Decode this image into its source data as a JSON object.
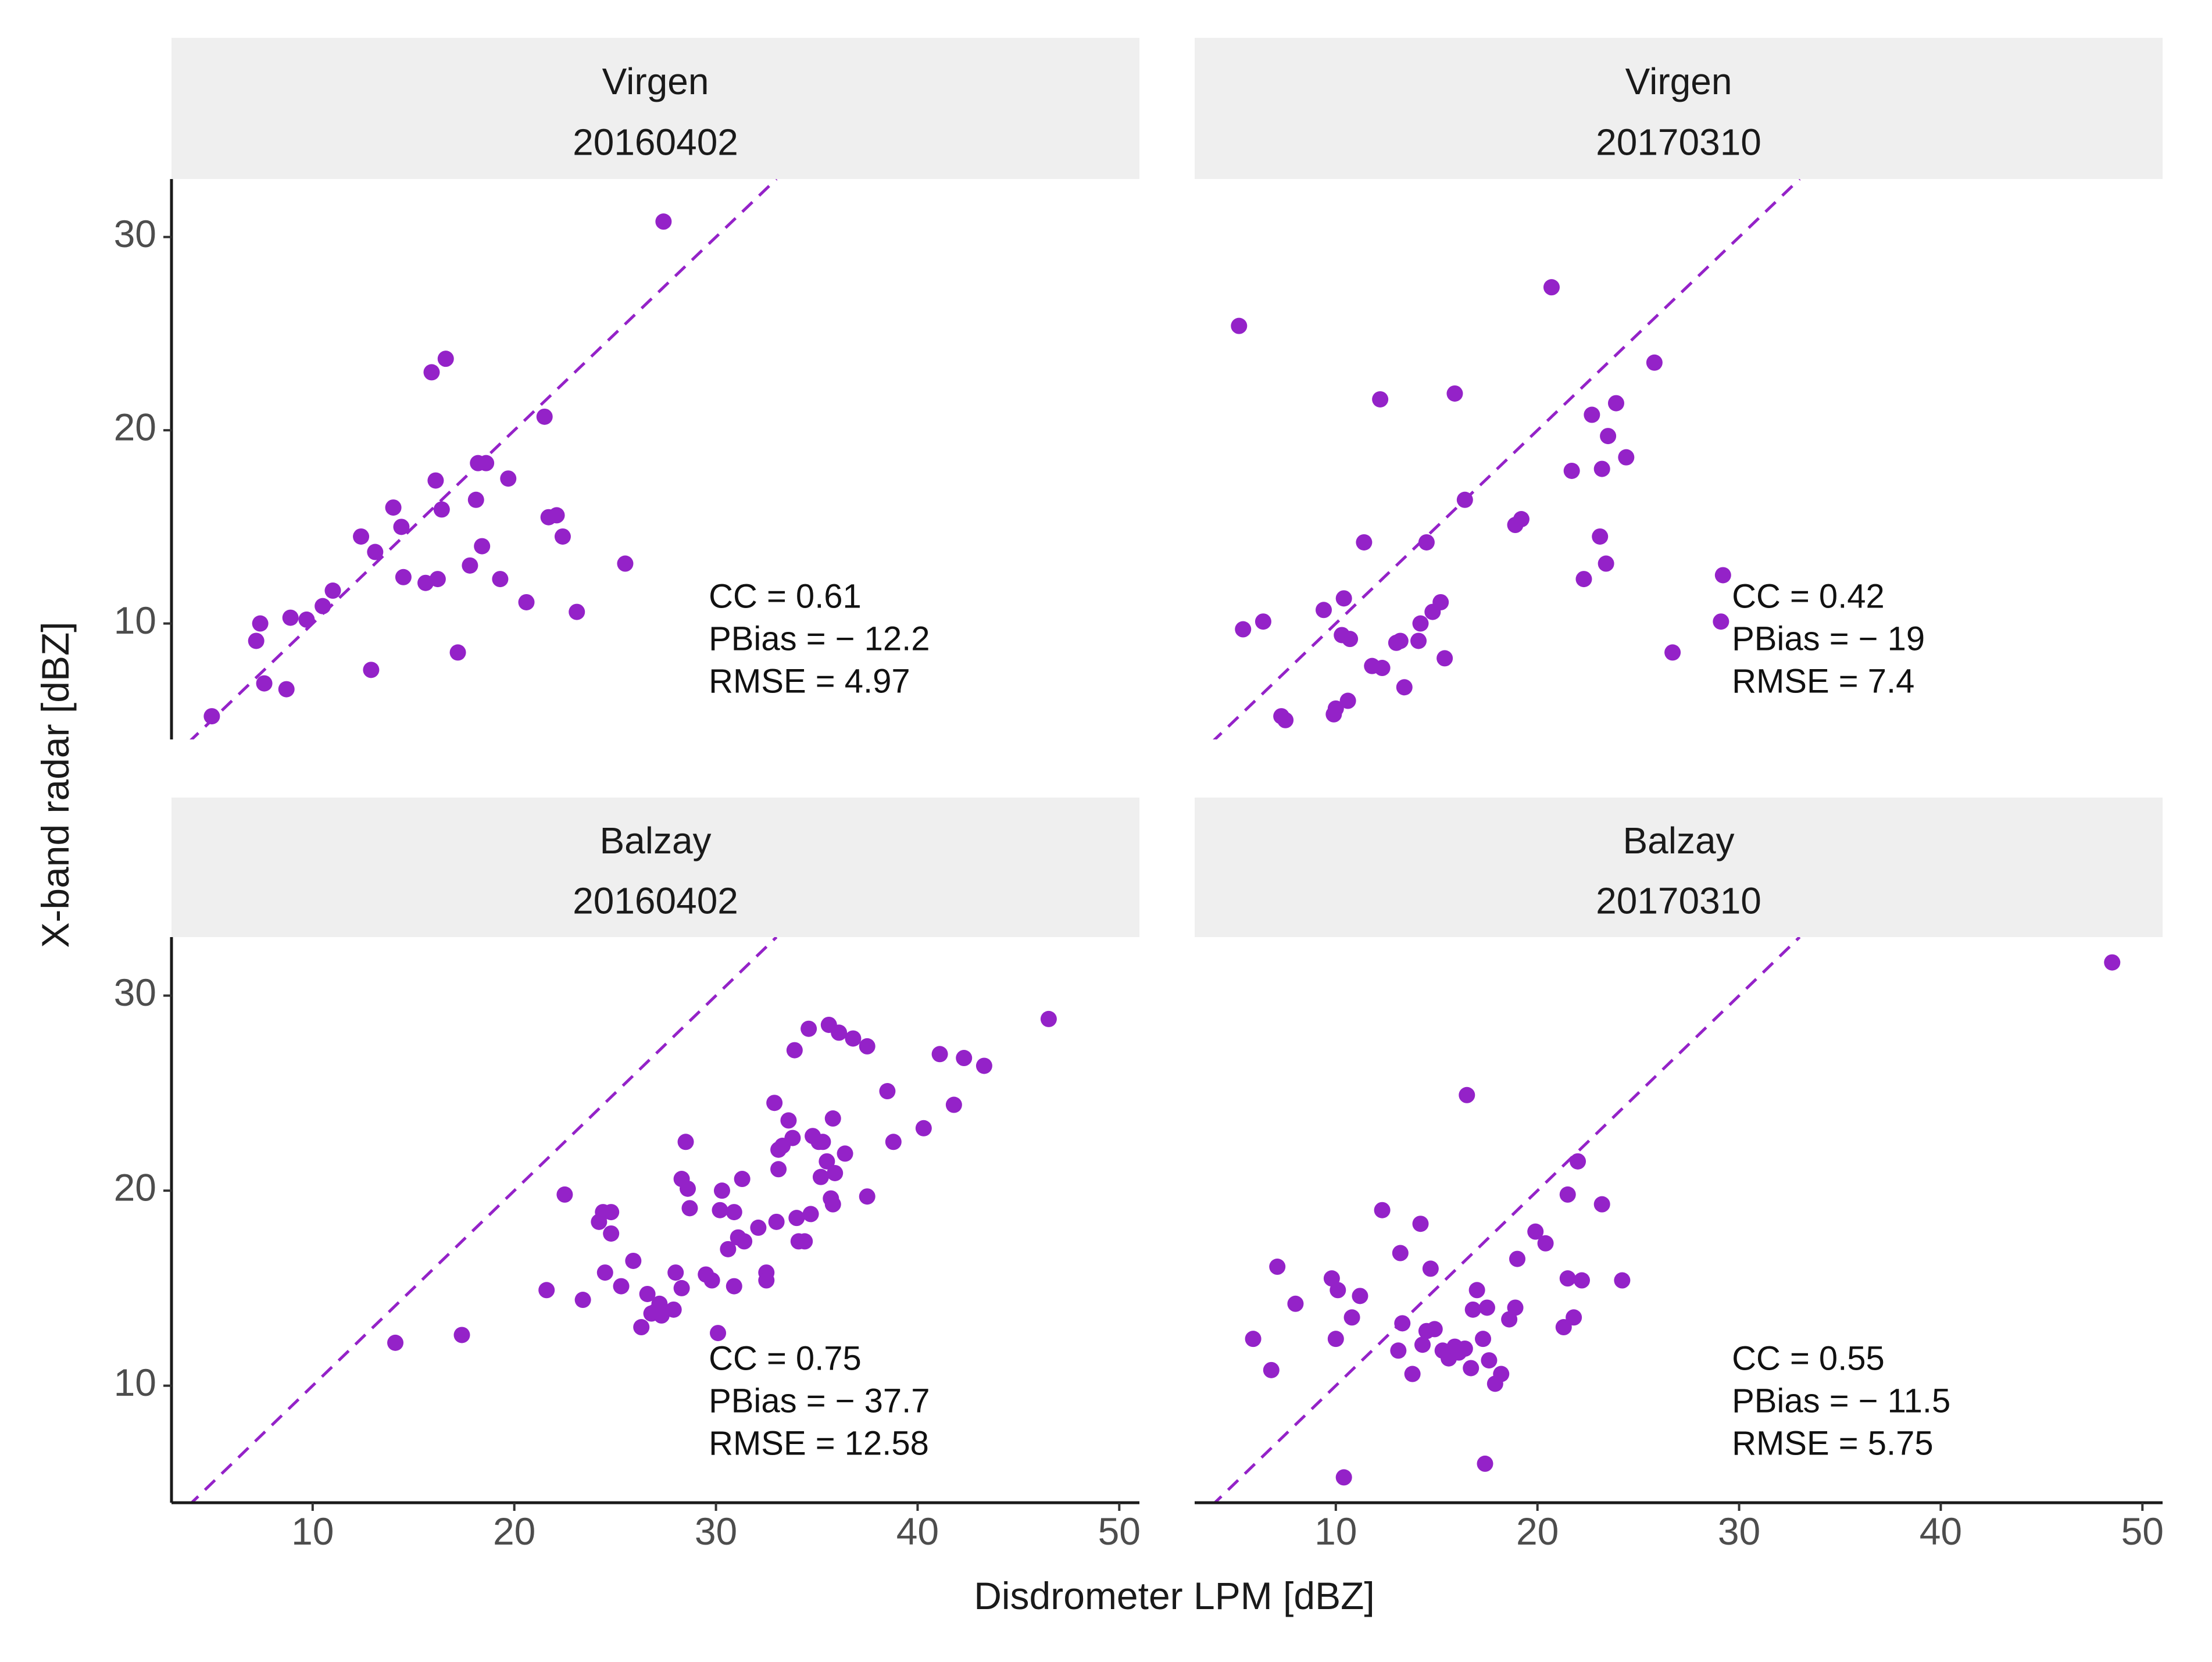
{
  "chart_data": {
    "type": "scatter",
    "xlabel": "Disdrometer LPM [dBZ]",
    "ylabel": "X-band radar [dBZ]",
    "xlim": [
      3,
      51
    ],
    "ylim": [
      4,
      33
    ],
    "xticks": [
      10,
      20,
      30,
      40,
      50
    ],
    "yticks": [
      10,
      20,
      30
    ],
    "reference_line": "1:1 dashed",
    "colors": {
      "point": "#9422c8",
      "line": "#9422c8",
      "strip": "#efefef"
    },
    "panels": [
      {
        "site": "Virgen",
        "date": "20160402",
        "stats": {
          "cc": "CC = 0.61",
          "pbias": "PBias = − 12.2",
          "rmse": "RMSE = 4.97"
        },
        "points": [
          [
            5.0,
            5.2
          ],
          [
            7.2,
            9.1
          ],
          [
            7.4,
            10.0
          ],
          [
            7.6,
            6.9
          ],
          [
            8.7,
            6.6
          ],
          [
            8.9,
            10.3
          ],
          [
            9.7,
            10.2
          ],
          [
            10.5,
            10.9
          ],
          [
            11.0,
            11.7
          ],
          [
            12.4,
            14.5
          ],
          [
            12.9,
            7.6
          ],
          [
            13.1,
            13.7
          ],
          [
            14.0,
            16.0
          ],
          [
            14.4,
            15.0
          ],
          [
            14.5,
            12.4
          ],
          [
            15.6,
            12.1
          ],
          [
            15.9,
            23.0
          ],
          [
            16.1,
            17.4
          ],
          [
            16.2,
            12.3
          ],
          [
            16.4,
            15.9
          ],
          [
            16.6,
            23.7
          ],
          [
            17.2,
            8.5
          ],
          [
            17.8,
            13.0
          ],
          [
            18.1,
            16.4
          ],
          [
            18.2,
            18.3
          ],
          [
            18.4,
            14.0
          ],
          [
            18.6,
            18.3
          ],
          [
            19.3,
            12.3
          ],
          [
            19.7,
            17.5
          ],
          [
            20.6,
            11.1
          ],
          [
            21.5,
            20.7
          ],
          [
            21.7,
            15.5
          ],
          [
            22.1,
            15.6
          ],
          [
            22.4,
            14.5
          ],
          [
            23.1,
            10.6
          ],
          [
            25.5,
            13.1
          ],
          [
            27.4,
            30.8
          ]
        ]
      },
      {
        "site": "Virgen",
        "date": "20170310",
        "stats": {
          "cc": "CC = 0.42",
          "pbias": "PBias = − 19",
          "rmse": "RMSE = 7.4"
        },
        "points": [
          [
            5.2,
            25.4
          ],
          [
            5.4,
            9.7
          ],
          [
            6.4,
            10.1
          ],
          [
            7.3,
            5.2
          ],
          [
            7.5,
            5.0
          ],
          [
            9.4,
            10.7
          ],
          [
            9.9,
            5.3
          ],
          [
            10.0,
            5.6
          ],
          [
            10.3,
            9.4
          ],
          [
            10.4,
            11.3
          ],
          [
            10.6,
            6.0
          ],
          [
            10.7,
            9.2
          ],
          [
            11.4,
            14.2
          ],
          [
            11.8,
            7.8
          ],
          [
            12.2,
            21.6
          ],
          [
            12.3,
            7.7
          ],
          [
            13.0,
            9.0
          ],
          [
            13.2,
            9.1
          ],
          [
            13.4,
            6.7
          ],
          [
            14.1,
            9.1
          ],
          [
            14.2,
            10.0
          ],
          [
            14.5,
            14.2
          ],
          [
            14.8,
            10.6
          ],
          [
            15.2,
            11.1
          ],
          [
            15.4,
            8.2
          ],
          [
            15.9,
            21.9
          ],
          [
            16.4,
            16.4
          ],
          [
            18.9,
            15.1
          ],
          [
            19.2,
            15.4
          ],
          [
            20.7,
            27.4
          ],
          [
            21.7,
            17.9
          ],
          [
            22.3,
            12.3
          ],
          [
            22.7,
            20.8
          ],
          [
            23.1,
            14.5
          ],
          [
            23.2,
            18.0
          ],
          [
            23.4,
            13.1
          ],
          [
            23.5,
            19.7
          ],
          [
            23.9,
            21.4
          ],
          [
            24.4,
            18.6
          ],
          [
            25.8,
            23.5
          ],
          [
            26.7,
            8.5
          ],
          [
            29.1,
            10.1
          ],
          [
            29.2,
            12.5
          ]
        ]
      },
      {
        "site": "Balzay",
        "date": "20160402",
        "stats": {
          "cc": "CC = 0.75",
          "pbias": "PBias = − 37.7",
          "rmse": "RMSE = 12.58"
        },
        "points": [
          [
            14.1,
            12.2
          ],
          [
            17.4,
            12.6
          ],
          [
            21.6,
            14.9
          ],
          [
            22.5,
            19.8
          ],
          [
            23.4,
            14.4
          ],
          [
            24.2,
            18.4
          ],
          [
            24.4,
            18.9
          ],
          [
            24.5,
            15.8
          ],
          [
            24.8,
            18.9
          ],
          [
            24.8,
            17.8
          ],
          [
            25.3,
            15.1
          ],
          [
            25.9,
            16.4
          ],
          [
            26.3,
            13.0
          ],
          [
            26.6,
            14.7
          ],
          [
            26.8,
            13.7
          ],
          [
            27.0,
            13.8
          ],
          [
            27.2,
            14.2
          ],
          [
            27.3,
            13.6
          ],
          [
            27.9,
            13.9
          ],
          [
            28.0,
            15.8
          ],
          [
            28.3,
            15.0
          ],
          [
            28.3,
            20.6
          ],
          [
            28.5,
            22.5
          ],
          [
            28.6,
            20.1
          ],
          [
            28.7,
            19.1
          ],
          [
            29.5,
            15.7
          ],
          [
            29.8,
            15.4
          ],
          [
            30.1,
            12.7
          ],
          [
            30.2,
            19.0
          ],
          [
            30.3,
            20.0
          ],
          [
            30.6,
            17.0
          ],
          [
            30.9,
            18.9
          ],
          [
            30.9,
            15.1
          ],
          [
            31.1,
            17.6
          ],
          [
            31.3,
            20.6
          ],
          [
            31.4,
            17.4
          ],
          [
            32.1,
            18.1
          ],
          [
            32.5,
            15.8
          ],
          [
            32.5,
            15.4
          ],
          [
            32.9,
            24.5
          ],
          [
            33.0,
            18.4
          ],
          [
            33.1,
            22.1
          ],
          [
            33.1,
            21.1
          ],
          [
            33.3,
            22.3
          ],
          [
            33.6,
            23.6
          ],
          [
            33.8,
            22.7
          ],
          [
            33.9,
            27.2
          ],
          [
            34.0,
            18.6
          ],
          [
            34.1,
            17.4
          ],
          [
            34.4,
            17.4
          ],
          [
            34.6,
            28.3
          ],
          [
            34.7,
            18.8
          ],
          [
            34.8,
            22.8
          ],
          [
            35.1,
            22.5
          ],
          [
            35.2,
            20.7
          ],
          [
            35.3,
            22.5
          ],
          [
            35.5,
            21.5
          ],
          [
            35.6,
            28.5
          ],
          [
            35.7,
            19.6
          ],
          [
            35.8,
            19.3
          ],
          [
            35.8,
            23.7
          ],
          [
            35.9,
            20.9
          ],
          [
            36.1,
            28.1
          ],
          [
            36.4,
            21.9
          ],
          [
            36.8,
            27.8
          ],
          [
            37.5,
            27.4
          ],
          [
            37.5,
            19.7
          ],
          [
            38.5,
            25.1
          ],
          [
            38.8,
            22.5
          ],
          [
            40.3,
            23.2
          ],
          [
            41.1,
            27.0
          ],
          [
            41.8,
            24.4
          ],
          [
            42.3,
            26.8
          ],
          [
            43.3,
            26.4
          ],
          [
            46.5,
            28.8
          ]
        ]
      },
      {
        "site": "Balzay",
        "date": "20170310",
        "stats": {
          "cc": "CC = 0.55",
          "pbias": "PBias = − 11.5",
          "rmse": "RMSE = 5.75"
        },
        "points": [
          [
            5.9,
            12.4
          ],
          [
            6.8,
            10.8
          ],
          [
            7.1,
            16.1
          ],
          [
            8.0,
            14.2
          ],
          [
            9.8,
            15.5
          ],
          [
            10.0,
            12.4
          ],
          [
            10.1,
            14.9
          ],
          [
            10.4,
            5.3
          ],
          [
            10.8,
            13.5
          ],
          [
            11.2,
            14.6
          ],
          [
            12.3,
            19.0
          ],
          [
            13.1,
            11.8
          ],
          [
            13.2,
            16.8
          ],
          [
            13.3,
            13.2
          ],
          [
            13.8,
            10.6
          ],
          [
            14.2,
            18.3
          ],
          [
            14.3,
            12.1
          ],
          [
            14.5,
            12.8
          ],
          [
            14.7,
            16.0
          ],
          [
            14.9,
            12.9
          ],
          [
            15.3,
            11.8
          ],
          [
            15.6,
            11.4
          ],
          [
            15.9,
            12.0
          ],
          [
            16.1,
            11.7
          ],
          [
            16.4,
            11.9
          ],
          [
            16.5,
            24.9
          ],
          [
            16.7,
            10.9
          ],
          [
            16.8,
            13.9
          ],
          [
            17.0,
            14.9
          ],
          [
            17.3,
            12.4
          ],
          [
            17.4,
            6.0
          ],
          [
            17.5,
            14.0
          ],
          [
            17.6,
            11.3
          ],
          [
            17.9,
            10.1
          ],
          [
            18.2,
            10.6
          ],
          [
            18.6,
            13.4
          ],
          [
            18.9,
            14.0
          ],
          [
            19.0,
            16.5
          ],
          [
            19.9,
            17.9
          ],
          [
            20.4,
            17.3
          ],
          [
            21.3,
            13.0
          ],
          [
            21.5,
            19.8
          ],
          [
            21.5,
            15.5
          ],
          [
            21.8,
            13.5
          ],
          [
            22.0,
            21.5
          ],
          [
            22.2,
            15.4
          ],
          [
            23.2,
            19.3
          ],
          [
            24.2,
            15.4
          ],
          [
            48.5,
            31.7
          ]
        ]
      }
    ]
  }
}
